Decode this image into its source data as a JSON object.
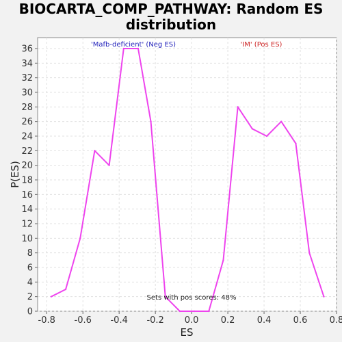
{
  "chart_data": {
    "type": "line",
    "title_lines": [
      "BIOCARTA_COMP_PATHWAY: Random ES",
      "distribution"
    ],
    "xlabel": "ES",
    "ylabel": "P(ES)",
    "xlim": [
      -0.85,
      0.8
    ],
    "ylim": [
      0,
      37.5
    ],
    "xticks": [
      -0.8,
      -0.6,
      -0.4,
      -0.2,
      0.0,
      0.2,
      0.4,
      0.6,
      0.8
    ],
    "xtick_labels": [
      "-0.8",
      "-0.6",
      "-0.4",
      "-0.2",
      "0.0",
      "0.2",
      "0.4",
      "0.6",
      "0.8"
    ],
    "yticks": [
      0,
      2,
      4,
      6,
      8,
      10,
      12,
      14,
      16,
      18,
      20,
      22,
      24,
      26,
      28,
      30,
      32,
      34,
      36
    ],
    "ytick_labels": [
      "0",
      "2",
      "4",
      "6",
      "8",
      "10",
      "12",
      "14",
      "16",
      "18",
      "20",
      "22",
      "24",
      "26",
      "28",
      "30",
      "32",
      "34",
      "36"
    ],
    "grid": true,
    "series": [
      {
        "color": "#ee44ee",
        "x": [
          -0.775,
          -0.695,
          -0.615,
          -0.535,
          -0.455,
          -0.375,
          -0.295,
          -0.225,
          -0.145,
          -0.065,
          0.015,
          0.095,
          0.175,
          0.255,
          0.335,
          0.415,
          0.495,
          0.575,
          0.65,
          0.73
        ],
        "y": [
          2,
          3,
          10,
          22,
          20,
          36,
          36,
          26,
          2,
          0,
          0,
          0,
          7,
          28,
          25,
          24,
          26,
          23,
          8,
          2
        ]
      }
    ],
    "annotations": {
      "neg": {
        "text": "'Mafb-deficient' (Neg ES)",
        "color": "#2222bb"
      },
      "pos": {
        "text": "'IM' (Pos ES)",
        "color": "#cc2222"
      },
      "footer": {
        "text": "Sets with pos scores: 48%",
        "color": "#222222"
      }
    }
  }
}
